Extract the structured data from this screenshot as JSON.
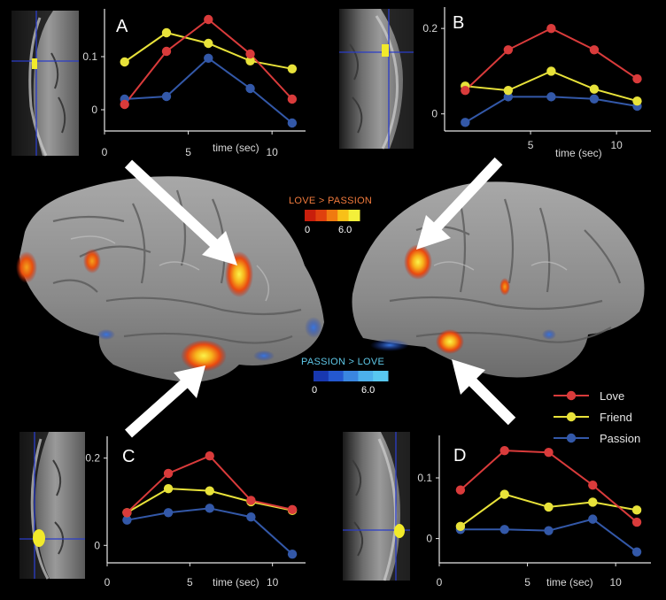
{
  "legend": [
    {
      "name": "Love",
      "color": "#d93b3b"
    },
    {
      "name": "Friend",
      "color": "#e8e23a"
    },
    {
      "name": "Passion",
      "color": "#3358a8"
    }
  ],
  "colorbars": {
    "positive": {
      "title": "LOVE > PASSION",
      "min_label": "0",
      "max_label": "6.0",
      "colors": [
        "#c81e0c",
        "#e0400e",
        "#f07a10",
        "#f8c018",
        "#f4f03a"
      ]
    },
    "negative": {
      "title": "PASSION > LOVE",
      "min_label": "0",
      "max_label": "6.0",
      "colors": [
        "#1838b0",
        "#2458d0",
        "#3a86e0",
        "#4cb0ec",
        "#58c8f0"
      ]
    }
  },
  "chart_data": [
    {
      "panel": "A",
      "type": "line",
      "xlabel": "time (sec)",
      "x": [
        1.2,
        3.7,
        6.2,
        8.7,
        11.2
      ],
      "x_ticks": [
        "0",
        "5",
        "10"
      ],
      "y_ticks": [
        "0",
        "0.1"
      ],
      "xlim": [
        0,
        12
      ],
      "ylim": [
        -0.04,
        0.19
      ],
      "series": [
        {
          "name": "Love",
          "values": [
            0.01,
            0.11,
            0.17,
            0.105,
            0.02
          ]
        },
        {
          "name": "Friend",
          "values": [
            0.09,
            0.145,
            0.125,
            0.092,
            0.077
          ]
        },
        {
          "name": "Passion",
          "values": [
            0.02,
            0.025,
            0.097,
            0.04,
            -0.025
          ]
        }
      ]
    },
    {
      "panel": "B",
      "type": "line",
      "xlabel": "time (sec)",
      "x": [
        1.2,
        3.7,
        6.2,
        8.7,
        11.2
      ],
      "x_ticks": [
        "5",
        "10"
      ],
      "y_ticks": [
        "0",
        "0.2"
      ],
      "xlim": [
        0,
        12
      ],
      "ylim": [
        -0.04,
        0.25
      ],
      "series": [
        {
          "name": "Love",
          "values": [
            0.055,
            0.15,
            0.2,
            0.15,
            0.082
          ]
        },
        {
          "name": "Friend",
          "values": [
            0.065,
            0.055,
            0.1,
            0.058,
            0.03
          ]
        },
        {
          "name": "Passion",
          "values": [
            -0.02,
            0.04,
            0.04,
            0.035,
            0.018
          ]
        }
      ]
    },
    {
      "panel": "C",
      "type": "line",
      "xlabel": "time (sec)",
      "x": [
        1.2,
        3.7,
        6.2,
        8.7,
        11.2
      ],
      "x_ticks": [
        "0",
        "5",
        "10"
      ],
      "y_ticks": [
        "0",
        "0.2"
      ],
      "xlim": [
        0,
        12
      ],
      "ylim": [
        -0.04,
        0.25
      ],
      "series": [
        {
          "name": "Love",
          "values": [
            0.075,
            0.165,
            0.205,
            0.103,
            0.082
          ]
        },
        {
          "name": "Friend",
          "values": [
            0.075,
            0.13,
            0.125,
            0.1,
            0.08
          ]
        },
        {
          "name": "Passion",
          "values": [
            0.058,
            0.075,
            0.085,
            0.065,
            -0.02
          ]
        }
      ]
    },
    {
      "panel": "D",
      "type": "line",
      "xlabel": "time (sec)",
      "x": [
        1.2,
        3.7,
        6.2,
        8.7,
        11.2
      ],
      "x_ticks": [
        "0",
        "5",
        "10"
      ],
      "y_ticks": [
        "0",
        "0.1"
      ],
      "xlim": [
        0,
        12
      ],
      "ylim": [
        -0.04,
        0.17
      ],
      "series": [
        {
          "name": "Love",
          "values": [
            0.08,
            0.145,
            0.142,
            0.088,
            0.027
          ]
        },
        {
          "name": "Friend",
          "values": [
            0.02,
            0.073,
            0.052,
            0.06,
            0.047
          ]
        },
        {
          "name": "Passion",
          "values": [
            0.015,
            0.015,
            0.013,
            0.032,
            -0.022
          ]
        }
      ]
    }
  ]
}
